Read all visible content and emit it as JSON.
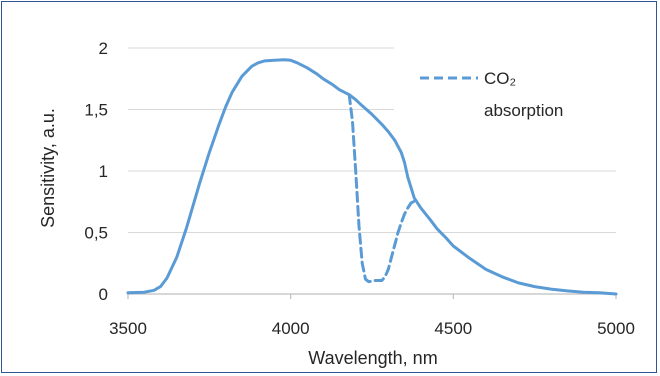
{
  "chart_data": {
    "type": "line",
    "title": "",
    "xlabel": "Wavelength, nm",
    "ylabel": "Sensitivity, a.u.",
    "xlim": [
      3500,
      5000
    ],
    "ylim": [
      0,
      2
    ],
    "x_ticks": [
      3500,
      4000,
      4500,
      5000
    ],
    "y_ticks": [
      0,
      0.5,
      1,
      1.5,
      2
    ],
    "x_tick_labels": [
      "3500",
      "4000",
      "4500",
      "5000"
    ],
    "y_tick_labels": [
      "0",
      "0,5",
      "1",
      "1,5",
      "2"
    ],
    "grid": "horizontal",
    "legend_position": "top-right",
    "series": [
      {
        "name": "",
        "style": "solid",
        "color": "#5b9bd5",
        "x": [
          3500,
          3550,
          3580,
          3600,
          3620,
          3650,
          3680,
          3700,
          3720,
          3750,
          3780,
          3800,
          3820,
          3850,
          3880,
          3900,
          3920,
          3950,
          3980,
          4000,
          4020,
          4050,
          4080,
          4100,
          4130,
          4150,
          4180,
          4200,
          4220,
          4250,
          4280,
          4300,
          4320,
          4340,
          4350,
          4360,
          4380,
          4400,
          4430,
          4450,
          4480,
          4500,
          4550,
          4600,
          4650,
          4700,
          4750,
          4800,
          4850,
          4900,
          4950,
          5000
        ],
        "y": [
          0.01,
          0.015,
          0.03,
          0.06,
          0.13,
          0.3,
          0.54,
          0.72,
          0.9,
          1.15,
          1.38,
          1.52,
          1.64,
          1.77,
          1.85,
          1.88,
          1.895,
          1.9,
          1.905,
          1.9,
          1.88,
          1.84,
          1.79,
          1.75,
          1.7,
          1.66,
          1.62,
          1.58,
          1.53,
          1.46,
          1.38,
          1.32,
          1.25,
          1.15,
          1.07,
          0.95,
          0.78,
          0.7,
          0.6,
          0.53,
          0.45,
          0.39,
          0.29,
          0.2,
          0.14,
          0.09,
          0.06,
          0.04,
          0.025,
          0.015,
          0.01,
          0.0
        ]
      },
      {
        "name": "CO₂ absorption",
        "style": "dashed",
        "color": "#5b9bd5",
        "x": [
          4180,
          4190,
          4200,
          4210,
          4220,
          4230,
          4240,
          4260,
          4280,
          4290,
          4300,
          4310,
          4320,
          4330,
          4340,
          4350,
          4360,
          4370,
          4385
        ],
        "y": [
          1.62,
          1.4,
          1.0,
          0.55,
          0.25,
          0.12,
          0.1,
          0.11,
          0.11,
          0.14,
          0.2,
          0.3,
          0.4,
          0.5,
          0.58,
          0.65,
          0.7,
          0.74,
          0.76
        ]
      }
    ],
    "legend_text_line1": "CO₂",
    "legend_text_line2": "absorption"
  }
}
